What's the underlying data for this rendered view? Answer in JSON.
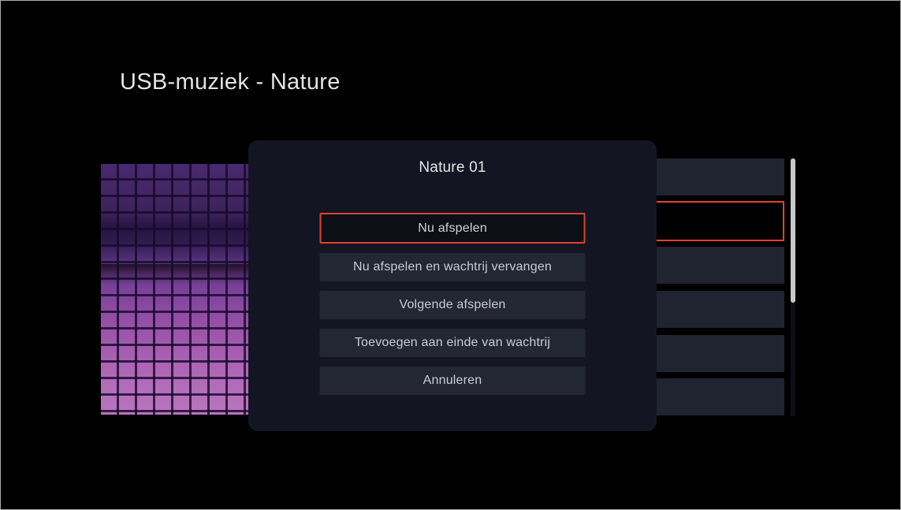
{
  "page": {
    "title": "USB-muziek - Nature"
  },
  "dialog": {
    "title": "Nature 01",
    "buttons": [
      {
        "label": "Nu afspelen",
        "focused": true
      },
      {
        "label": "Nu afspelen en wachtrij vervangen",
        "focused": false
      },
      {
        "label": "Volgende afspelen",
        "focused": false
      },
      {
        "label": "Toevoegen aan einde van wachtrij",
        "focused": false
      },
      {
        "label": "Annuleren",
        "focused": false
      }
    ]
  },
  "track_list": {
    "visible_item_count": 6,
    "selected_index": 1,
    "items": [
      {
        "selected": false
      },
      {
        "selected": true
      },
      {
        "selected": false
      },
      {
        "selected": false
      },
      {
        "selected": false
      },
      {
        "selected": false
      }
    ]
  },
  "scrollbar": {
    "thumb_position": "top"
  },
  "album_art": {
    "description": "purple tiled mosaic gradient"
  },
  "colors": {
    "accent_red": "#e04330",
    "dialog_bg": "#131622",
    "dialog_button_bg": "#232734",
    "focused_button_bg": "#0c0f16",
    "list_item_bg": "#1f2430",
    "scrollbar_thumb": "#c9c9c9",
    "title_text": "#e4e4e4",
    "button_text": "#cacbd1"
  }
}
